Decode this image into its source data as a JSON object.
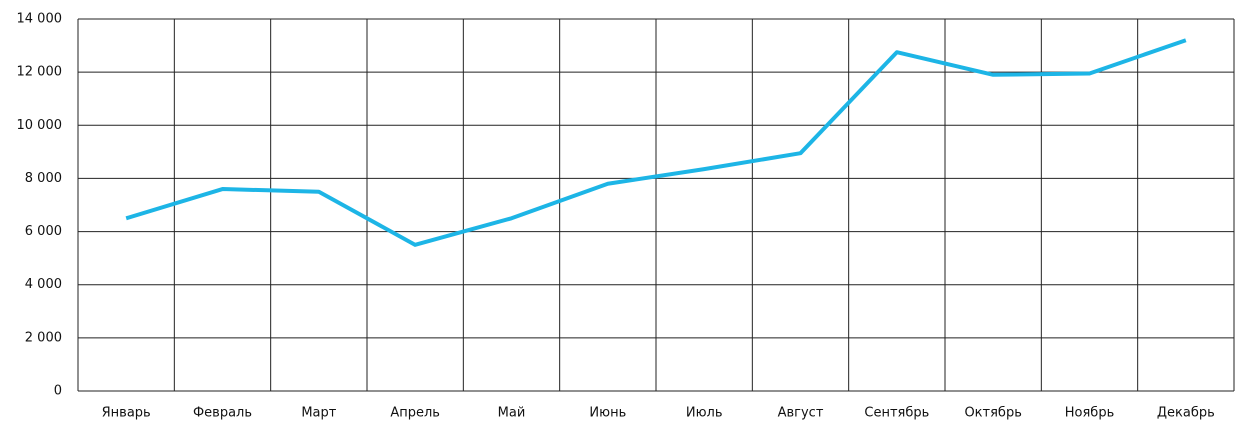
{
  "chart_data": {
    "type": "line",
    "categories": [
      "Январь",
      "Февраль",
      "Март",
      "Апрель",
      "Май",
      "Июнь",
      "Июль",
      "Август",
      "Сентябрь",
      "Октябрь",
      "Ноябрь",
      "Декабрь"
    ],
    "series": [
      {
        "color": "#1db5e6",
        "values": [
          6500,
          7600,
          7500,
          5500,
          6500,
          7800,
          8350,
          8950,
          12750,
          11900,
          11950,
          13200
        ]
      }
    ],
    "ylim": [
      0,
      14000
    ],
    "yticks": [
      0,
      {
        "value": 2000,
        "label": "2 000"
      },
      {
        "value": 4000,
        "label": "4 000"
      },
      {
        "value": 6000,
        "label": "6 000"
      },
      {
        "value": 8000,
        "label": "8 000"
      },
      {
        "value": 10000,
        "label": "10 000"
      },
      {
        "value": 12000,
        "label": "12 000"
      },
      {
        "value": 14000,
        "label": "14 000"
      }
    ],
    "grid": true
  }
}
